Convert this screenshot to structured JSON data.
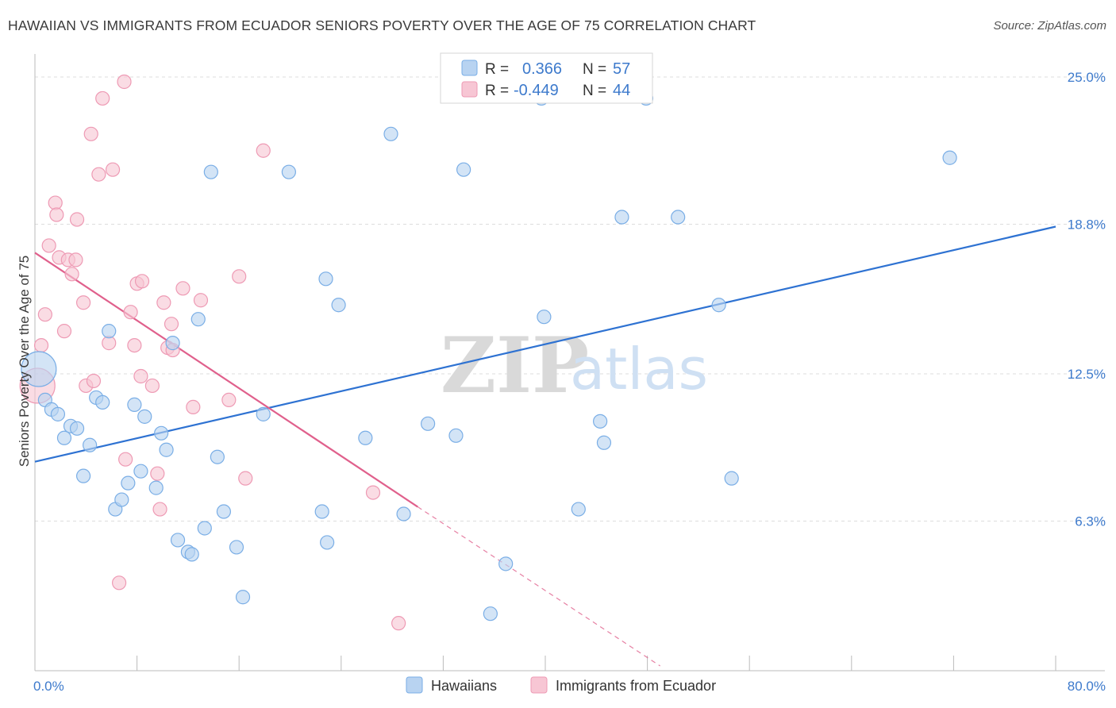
{
  "title": "HAWAIIAN VS IMMIGRANTS FROM ECUADOR SENIORS POVERTY OVER THE AGE OF 75 CORRELATION CHART",
  "source": "Source: ZipAtlas.com",
  "watermark": {
    "zip": "ZIP",
    "atlas": "atlas"
  },
  "legend_stats": [
    {
      "r_label": "R =",
      "r_value": "0.366",
      "n_label": "N =",
      "n_value": "57"
    },
    {
      "r_label": "R =",
      "r_value": "-0.449",
      "n_label": "N =",
      "n_value": "44"
    }
  ],
  "colors": {
    "hawaiians_fill": "#b8d3f1",
    "hawaiians_stroke": "#7aaee6",
    "hawaiians_line": "#2e72d2",
    "ecuador_fill": "#f7c6d4",
    "ecuador_stroke": "#ee9ab4",
    "ecuador_line": "#e0608c",
    "grid": "#dddddd",
    "tick_text": "#3d7acc"
  },
  "chart_data": {
    "type": "scatter",
    "title": "HAWAIIAN VS IMMIGRANTS FROM ECUADOR SENIORS POVERTY OVER THE AGE OF 75 CORRELATION CHART",
    "xlabel": "",
    "ylabel": "Seniors Poverty Over the Age of 75",
    "xlim": [
      0,
      80
    ],
    "ylim": [
      0,
      25.0
    ],
    "x_tick_labels": [
      "0.0%",
      "80.0%"
    ],
    "y_ticks": [
      6.3,
      12.5,
      18.8,
      25.0
    ],
    "y_tick_labels": [
      "6.3%",
      "12.5%",
      "18.8%",
      "25.0%"
    ],
    "grid": true,
    "legend_position": "bottom",
    "series": [
      {
        "name": "Hawaiians",
        "r": 0.366,
        "n": 57,
        "trend": {
          "x": [
            0,
            80
          ],
          "y": [
            8.8,
            18.7
          ]
        },
        "points": [
          {
            "x": 0.3,
            "y": 12.7,
            "big": true
          },
          {
            "x": 0.8,
            "y": 11.4
          },
          {
            "x": 1.3,
            "y": 11.0
          },
          {
            "x": 1.8,
            "y": 10.8
          },
          {
            "x": 2.3,
            "y": 9.8
          },
          {
            "x": 2.8,
            "y": 10.3
          },
          {
            "x": 3.3,
            "y": 10.2
          },
          {
            "x": 3.8,
            "y": 8.2
          },
          {
            "x": 4.3,
            "y": 9.5
          },
          {
            "x": 4.8,
            "y": 11.5
          },
          {
            "x": 5.3,
            "y": 11.3
          },
          {
            "x": 5.8,
            "y": 14.3
          },
          {
            "x": 6.3,
            "y": 6.8
          },
          {
            "x": 6.8,
            "y": 7.2
          },
          {
            "x": 7.3,
            "y": 7.9
          },
          {
            "x": 7.8,
            "y": 11.2
          },
          {
            "x": 8.3,
            "y": 8.4
          },
          {
            "x": 8.6,
            "y": 10.7
          },
          {
            "x": 9.5,
            "y": 7.7
          },
          {
            "x": 9.9,
            "y": 10.0
          },
          {
            "x": 10.3,
            "y": 9.3
          },
          {
            "x": 10.8,
            "y": 13.8
          },
          {
            "x": 11.2,
            "y": 5.5
          },
          {
            "x": 12.0,
            "y": 5.0
          },
          {
            "x": 12.3,
            "y": 4.9
          },
          {
            "x": 12.8,
            "y": 14.8
          },
          {
            "x": 13.3,
            "y": 6.0
          },
          {
            "x": 13.8,
            "y": 21.0
          },
          {
            "x": 14.3,
            "y": 9.0
          },
          {
            "x": 14.8,
            "y": 6.7
          },
          {
            "x": 15.8,
            "y": 5.2
          },
          {
            "x": 16.3,
            "y": 3.1
          },
          {
            "x": 17.9,
            "y": 10.8
          },
          {
            "x": 19.9,
            "y": 21.0
          },
          {
            "x": 22.5,
            "y": 6.7
          },
          {
            "x": 22.8,
            "y": 16.5
          },
          {
            "x": 22.9,
            "y": 5.4
          },
          {
            "x": 23.8,
            "y": 15.4
          },
          {
            "x": 25.9,
            "y": 9.8
          },
          {
            "x": 27.9,
            "y": 22.6
          },
          {
            "x": 28.9,
            "y": 6.6
          },
          {
            "x": 30.8,
            "y": 10.4
          },
          {
            "x": 33.0,
            "y": 9.9
          },
          {
            "x": 33.6,
            "y": 21.1
          },
          {
            "x": 35.7,
            "y": 2.4
          },
          {
            "x": 36.9,
            "y": 4.5
          },
          {
            "x": 39.7,
            "y": 24.1
          },
          {
            "x": 39.9,
            "y": 14.9
          },
          {
            "x": 42.6,
            "y": 6.8
          },
          {
            "x": 44.3,
            "y": 10.5
          },
          {
            "x": 44.6,
            "y": 9.6
          },
          {
            "x": 46.0,
            "y": 19.1
          },
          {
            "x": 47.9,
            "y": 24.1
          },
          {
            "x": 50.4,
            "y": 19.1
          },
          {
            "x": 53.6,
            "y": 15.4
          },
          {
            "x": 54.6,
            "y": 8.1
          },
          {
            "x": 71.7,
            "y": 21.6
          }
        ]
      },
      {
        "name": "Immigrants from Ecuador",
        "r": -0.449,
        "n": 44,
        "trend": {
          "x": [
            0,
            30
          ],
          "y": [
            17.6,
            6.9
          ]
        },
        "trend_extension": {
          "x": [
            30,
            49
          ],
          "y": [
            6.9,
            0.2
          ]
        },
        "points": [
          {
            "x": 0.2,
            "y": 12.0,
            "big": true
          },
          {
            "x": 0.5,
            "y": 13.7
          },
          {
            "x": 0.8,
            "y": 15.0
          },
          {
            "x": 1.1,
            "y": 17.9
          },
          {
            "x": 1.6,
            "y": 19.7
          },
          {
            "x": 1.7,
            "y": 19.2
          },
          {
            "x": 1.9,
            "y": 17.4
          },
          {
            "x": 2.3,
            "y": 14.3
          },
          {
            "x": 2.6,
            "y": 17.3
          },
          {
            "x": 2.9,
            "y": 16.7
          },
          {
            "x": 3.2,
            "y": 17.3
          },
          {
            "x": 3.3,
            "y": 19.0
          },
          {
            "x": 3.8,
            "y": 15.5
          },
          {
            "x": 4.0,
            "y": 12.0
          },
          {
            "x": 4.6,
            "y": 12.2
          },
          {
            "x": 4.4,
            "y": 22.6
          },
          {
            "x": 5.0,
            "y": 20.9
          },
          {
            "x": 5.3,
            "y": 24.1
          },
          {
            "x": 5.8,
            "y": 13.8
          },
          {
            "x": 6.1,
            "y": 21.1
          },
          {
            "x": 6.6,
            "y": 3.7
          },
          {
            "x": 7.0,
            "y": 24.8
          },
          {
            "x": 7.1,
            "y": 8.9
          },
          {
            "x": 7.5,
            "y": 15.1
          },
          {
            "x": 7.8,
            "y": 13.7
          },
          {
            "x": 8.0,
            "y": 16.3
          },
          {
            "x": 8.3,
            "y": 12.4
          },
          {
            "x": 8.4,
            "y": 16.4
          },
          {
            "x": 9.2,
            "y": 12.0
          },
          {
            "x": 9.6,
            "y": 8.3
          },
          {
            "x": 9.8,
            "y": 6.8
          },
          {
            "x": 10.1,
            "y": 15.5
          },
          {
            "x": 10.4,
            "y": 13.6
          },
          {
            "x": 10.7,
            "y": 14.6
          },
          {
            "x": 10.8,
            "y": 13.5
          },
          {
            "x": 11.6,
            "y": 16.1
          },
          {
            "x": 12.4,
            "y": 11.1
          },
          {
            "x": 13.0,
            "y": 15.6
          },
          {
            "x": 15.2,
            "y": 11.4
          },
          {
            "x": 16.0,
            "y": 16.6
          },
          {
            "x": 16.5,
            "y": 8.1
          },
          {
            "x": 17.9,
            "y": 21.9
          },
          {
            "x": 26.5,
            "y": 7.5
          },
          {
            "x": 28.5,
            "y": 2.0
          }
        ]
      }
    ]
  }
}
